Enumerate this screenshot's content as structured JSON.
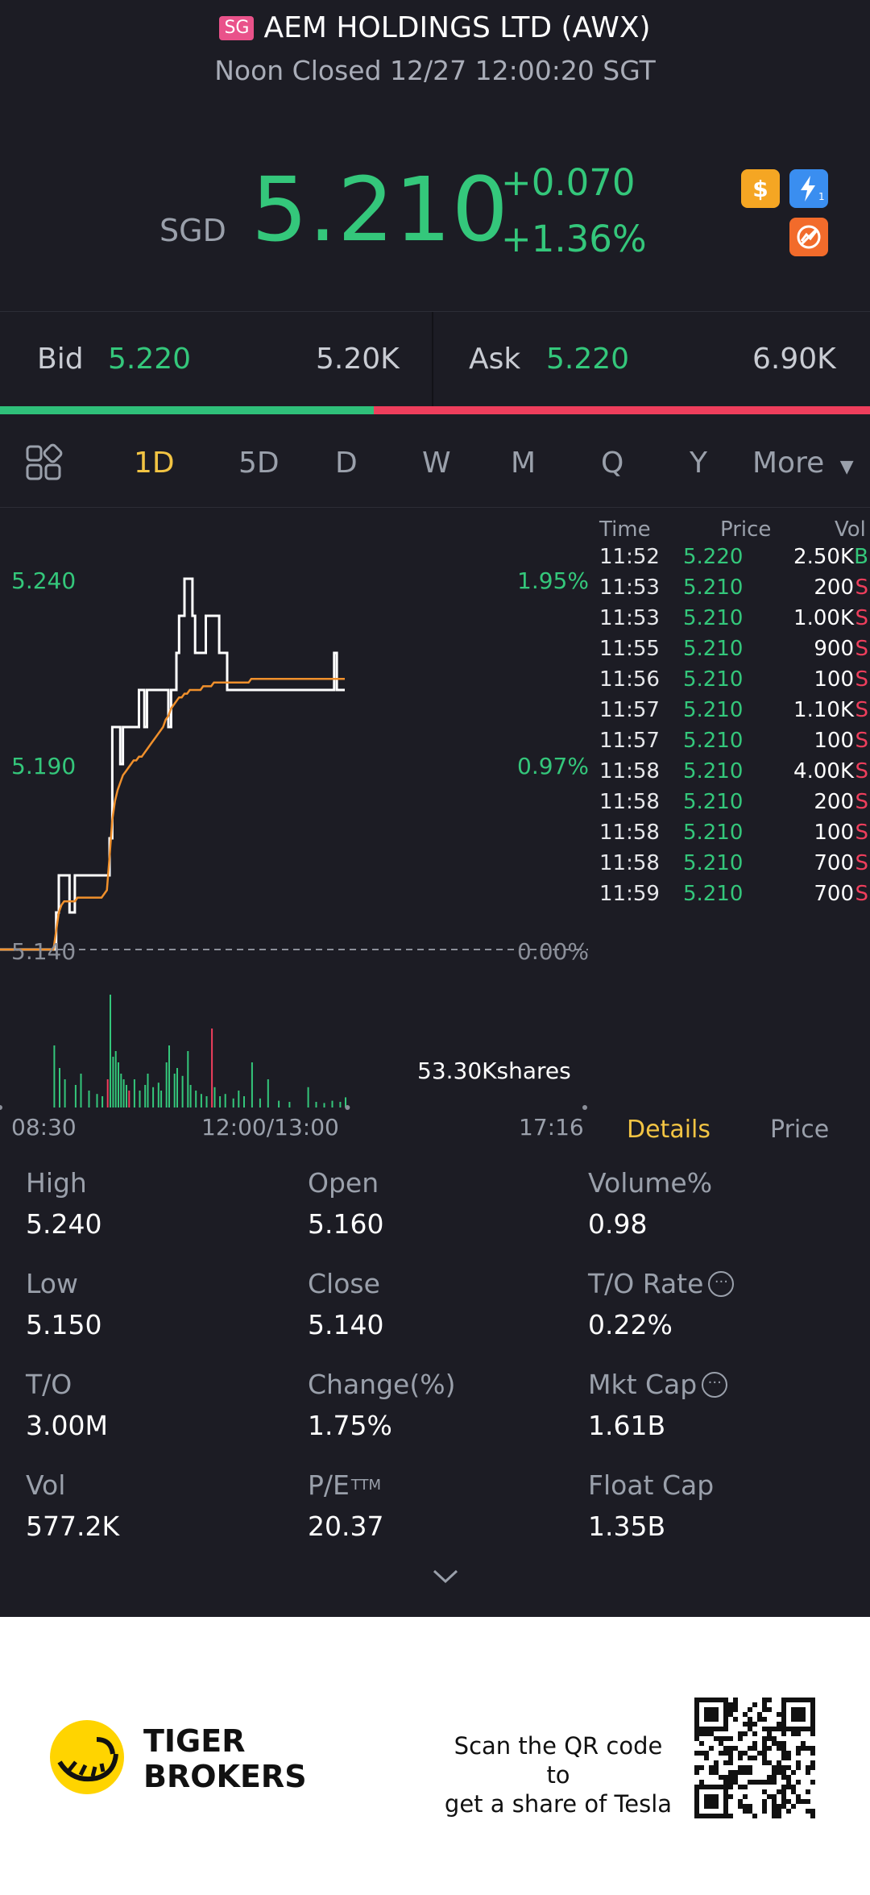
{
  "header": {
    "market_badge": "SG",
    "name": "AEM HOLDINGS LTD (AWX)",
    "status": "Noon Closed 12/27 12:00:20 SGT"
  },
  "quote": {
    "currency": "SGD",
    "price": "5.210",
    "change": "+0.070",
    "change_pct": "+1.36%",
    "icons": [
      "dollar-icon",
      "lightning-icon",
      "no-tradability-icon"
    ]
  },
  "bid_ask": {
    "bid_label": "Bid",
    "bid_price": "5.220",
    "bid_vol": "5.20K",
    "ask_label": "Ask",
    "ask_price": "5.220",
    "ask_vol": "6.90K",
    "bid_ratio": 0.43
  },
  "tabs": {
    "items": [
      "1D",
      "5D",
      "D",
      "W",
      "M",
      "Q",
      "Y"
    ],
    "more": "More",
    "active": "1D"
  },
  "chart": {
    "price_labels": [
      "5.240",
      "5.190",
      "5.140"
    ],
    "pct_labels": [
      "1.95%",
      "0.97%",
      "0.00%"
    ],
    "time_labels": [
      "08:30",
      "12:00/13:00",
      "17:16"
    ],
    "volume_label": "53.30Kshares"
  },
  "chart_data": {
    "type": "line",
    "title": "",
    "xlabel": "",
    "ylabel": "",
    "ylim": [
      5.14,
      5.24
    ],
    "x_ticks": [
      "08:30",
      "12:00/13:00",
      "17:16"
    ],
    "series": [
      {
        "values": [
          5.14,
          5.14,
          5.14,
          5.14,
          5.14,
          5.14,
          5.14,
          5.14,
          5.14,
          5.14,
          5.14,
          5.14,
          5.14,
          5.14,
          5.14,
          5.14,
          5.14,
          5.14,
          5.14,
          5.14,
          5.14,
          5.15,
          5.16,
          5.16,
          5.16,
          5.16,
          5.15,
          5.15,
          5.16,
          5.16,
          5.16,
          5.16,
          5.16,
          5.16,
          5.16,
          5.16,
          5.16,
          5.16,
          5.16,
          5.16,
          5.16,
          5.17,
          5.2,
          5.2,
          5.2,
          5.19,
          5.2,
          5.2,
          5.2,
          5.2,
          5.2,
          5.2,
          5.21,
          5.21,
          5.2,
          5.21,
          5.21,
          5.21,
          5.21,
          5.21,
          5.21,
          5.21,
          5.21,
          5.2,
          5.21,
          5.21,
          5.22,
          5.23,
          5.23,
          5.24,
          5.24,
          5.24,
          5.23,
          5.22,
          5.22,
          5.22,
          5.22,
          5.23,
          5.23,
          5.23,
          5.23,
          5.23,
          5.22,
          5.22,
          5.22,
          5.21,
          5.21,
          5.21,
          5.21,
          5.21,
          5.21,
          5.21,
          5.21,
          5.21,
          5.21,
          5.21,
          5.21,
          5.21,
          5.21,
          5.21,
          5.21,
          5.21,
          5.21,
          5.21,
          5.21,
          5.21,
          5.21,
          5.21,
          5.21,
          5.21,
          5.21,
          5.21,
          5.21,
          5.21,
          5.21,
          5.21,
          5.21,
          5.21,
          5.21,
          5.21,
          5.21,
          5.21,
          5.21,
          5.21,
          5.21,
          5.22,
          5.21,
          5.21,
          5.21,
          5.21
        ]
      },
      {
        "values": [
          5.14,
          5.14,
          5.14,
          5.14,
          5.14,
          5.14,
          5.14,
          5.14,
          5.14,
          5.14,
          5.14,
          5.14,
          5.14,
          5.14,
          5.14,
          5.14,
          5.14,
          5.14,
          5.14,
          5.14,
          5.14,
          5.145,
          5.15,
          5.152,
          5.153,
          5.153,
          5.153,
          5.153,
          5.153,
          5.154,
          5.154,
          5.154,
          5.154,
          5.154,
          5.154,
          5.154,
          5.154,
          5.154,
          5.154,
          5.155,
          5.156,
          5.165,
          5.175,
          5.18,
          5.183,
          5.185,
          5.187,
          5.188,
          5.189,
          5.19,
          5.191,
          5.191,
          5.192,
          5.192,
          5.193,
          5.194,
          5.195,
          5.196,
          5.197,
          5.198,
          5.199,
          5.2,
          5.202,
          5.203,
          5.205,
          5.206,
          5.207,
          5.208,
          5.208,
          5.209,
          5.209,
          5.21,
          5.21,
          5.21,
          5.21,
          5.21,
          5.211,
          5.211,
          5.211,
          5.211,
          5.212,
          5.212,
          5.212,
          5.212,
          5.212,
          5.212,
          5.212,
          5.212,
          5.212,
          5.212,
          5.212,
          5.212,
          5.212,
          5.212,
          5.213,
          5.213,
          5.213,
          5.213,
          5.213,
          5.213,
          5.213,
          5.213,
          5.213,
          5.213,
          5.213,
          5.213,
          5.213,
          5.213,
          5.213,
          5.213,
          5.213,
          5.213,
          5.213,
          5.213,
          5.213,
          5.213,
          5.213,
          5.213,
          5.213,
          5.213,
          5.213,
          5.213,
          5.213,
          5.213,
          5.213,
          5.213,
          5.213,
          5.213,
          5.213,
          5.213
        ]
      }
    ],
    "volume_bars": [
      {
        "i": 20,
        "v": 55,
        "c": "g"
      },
      {
        "i": 22,
        "v": 35,
        "c": "g"
      },
      {
        "i": 24,
        "v": 25,
        "c": "g"
      },
      {
        "i": 28,
        "v": 20,
        "c": "g"
      },
      {
        "i": 30,
        "v": 30,
        "c": "g"
      },
      {
        "i": 33,
        "v": 15,
        "c": "g"
      },
      {
        "i": 36,
        "v": 12,
        "c": "g"
      },
      {
        "i": 38,
        "v": 10,
        "c": "g"
      },
      {
        "i": 40,
        "v": 25,
        "c": "r"
      },
      {
        "i": 41,
        "v": 100,
        "c": "g"
      },
      {
        "i": 42,
        "v": 45,
        "c": "g"
      },
      {
        "i": 43,
        "v": 50,
        "c": "g"
      },
      {
        "i": 44,
        "v": 40,
        "c": "g"
      },
      {
        "i": 45,
        "v": 30,
        "c": "g"
      },
      {
        "i": 46,
        "v": 25,
        "c": "g"
      },
      {
        "i": 47,
        "v": 20,
        "c": "g"
      },
      {
        "i": 48,
        "v": 15,
        "c": "r"
      },
      {
        "i": 50,
        "v": 25,
        "c": "g"
      },
      {
        "i": 52,
        "v": 15,
        "c": "g"
      },
      {
        "i": 54,
        "v": 20,
        "c": "g"
      },
      {
        "i": 55,
        "v": 30,
        "c": "g"
      },
      {
        "i": 57,
        "v": 18,
        "c": "g"
      },
      {
        "i": 59,
        "v": 22,
        "c": "g"
      },
      {
        "i": 60,
        "v": 15,
        "c": "g"
      },
      {
        "i": 62,
        "v": 40,
        "c": "g"
      },
      {
        "i": 63,
        "v": 55,
        "c": "g"
      },
      {
        "i": 65,
        "v": 30,
        "c": "g"
      },
      {
        "i": 66,
        "v": 35,
        "c": "g"
      },
      {
        "i": 68,
        "v": 28,
        "c": "g"
      },
      {
        "i": 70,
        "v": 50,
        "c": "g"
      },
      {
        "i": 71,
        "v": 20,
        "c": "g"
      },
      {
        "i": 73,
        "v": 15,
        "c": "g"
      },
      {
        "i": 75,
        "v": 12,
        "c": "g"
      },
      {
        "i": 77,
        "v": 10,
        "c": "g"
      },
      {
        "i": 79,
        "v": 70,
        "c": "r"
      },
      {
        "i": 80,
        "v": 18,
        "c": "g"
      },
      {
        "i": 82,
        "v": 10,
        "c": "g"
      },
      {
        "i": 84,
        "v": 12,
        "c": "g"
      },
      {
        "i": 87,
        "v": 8,
        "c": "g"
      },
      {
        "i": 89,
        "v": 15,
        "c": "g"
      },
      {
        "i": 91,
        "v": 10,
        "c": "g"
      },
      {
        "i": 94,
        "v": 40,
        "c": "g"
      },
      {
        "i": 97,
        "v": 8,
        "c": "g"
      },
      {
        "i": 100,
        "v": 25,
        "c": "g"
      },
      {
        "i": 104,
        "v": 6,
        "c": "g"
      },
      {
        "i": 108,
        "v": 5,
        "c": "g"
      },
      {
        "i": 115,
        "v": 18,
        "c": "g"
      },
      {
        "i": 118,
        "v": 5,
        "c": "g"
      },
      {
        "i": 121,
        "v": 4,
        "c": "g"
      },
      {
        "i": 124,
        "v": 6,
        "c": "g"
      },
      {
        "i": 127,
        "v": 5,
        "c": "g"
      },
      {
        "i": 129,
        "v": 9,
        "c": "g"
      }
    ]
  },
  "ticks": {
    "headers": {
      "time": "Time",
      "price": "Price",
      "vol": "Vol"
    },
    "rows": [
      {
        "time": "11:52",
        "price": "5.220",
        "vol": "2.50K",
        "side": "B"
      },
      {
        "time": "11:53",
        "price": "5.210",
        "vol": "200",
        "side": "S"
      },
      {
        "time": "11:53",
        "price": "5.210",
        "vol": "1.00K",
        "side": "S"
      },
      {
        "time": "11:55",
        "price": "5.210",
        "vol": "900",
        "side": "S"
      },
      {
        "time": "11:56",
        "price": "5.210",
        "vol": "100",
        "side": "S"
      },
      {
        "time": "11:57",
        "price": "5.210",
        "vol": "1.10K",
        "side": "S"
      },
      {
        "time": "11:57",
        "price": "5.210",
        "vol": "100",
        "side": "S"
      },
      {
        "time": "11:58",
        "price": "5.210",
        "vol": "4.00K",
        "side": "S"
      },
      {
        "time": "11:58",
        "price": "5.210",
        "vol": "200",
        "side": "S"
      },
      {
        "time": "11:58",
        "price": "5.210",
        "vol": "100",
        "side": "S"
      },
      {
        "time": "11:58",
        "price": "5.210",
        "vol": "700",
        "side": "S"
      },
      {
        "time": "11:59",
        "price": "5.210",
        "vol": "700",
        "side": "S"
      }
    ],
    "tab_details": "Details",
    "tab_price": "Price"
  },
  "stats": [
    {
      "label": "High",
      "value": "5.240"
    },
    {
      "label": "Open",
      "value": "5.160"
    },
    {
      "label": "Volume%",
      "value": "0.98"
    },
    {
      "label": "Low",
      "value": "5.150"
    },
    {
      "label": "Close",
      "value": "5.140"
    },
    {
      "label": "T/O Rate",
      "value": "0.22%",
      "info": true
    },
    {
      "label": "T/O",
      "value": "3.00M"
    },
    {
      "label": "Change(%)",
      "value": "1.75%"
    },
    {
      "label": "Mkt Cap",
      "value": "1.61B",
      "info": true
    },
    {
      "label": "Vol",
      "value": "577.2K"
    },
    {
      "label": "P/E",
      "sup": "TTM",
      "value": "20.37"
    },
    {
      "label": "Float Cap",
      "value": "1.35B"
    }
  ],
  "footer": {
    "brand_line1": "TIGER",
    "brand_line2": "BROKERS",
    "scan_line1": "Scan the QR code to",
    "scan_line2": "get a share of Tesla"
  },
  "colors": {
    "background": "#1c1c24",
    "up": "#34c77b",
    "down": "#ee3e5c",
    "active_tab": "#f2c443",
    "price_line": "#ffffff",
    "avg_line": "#f0902c"
  }
}
